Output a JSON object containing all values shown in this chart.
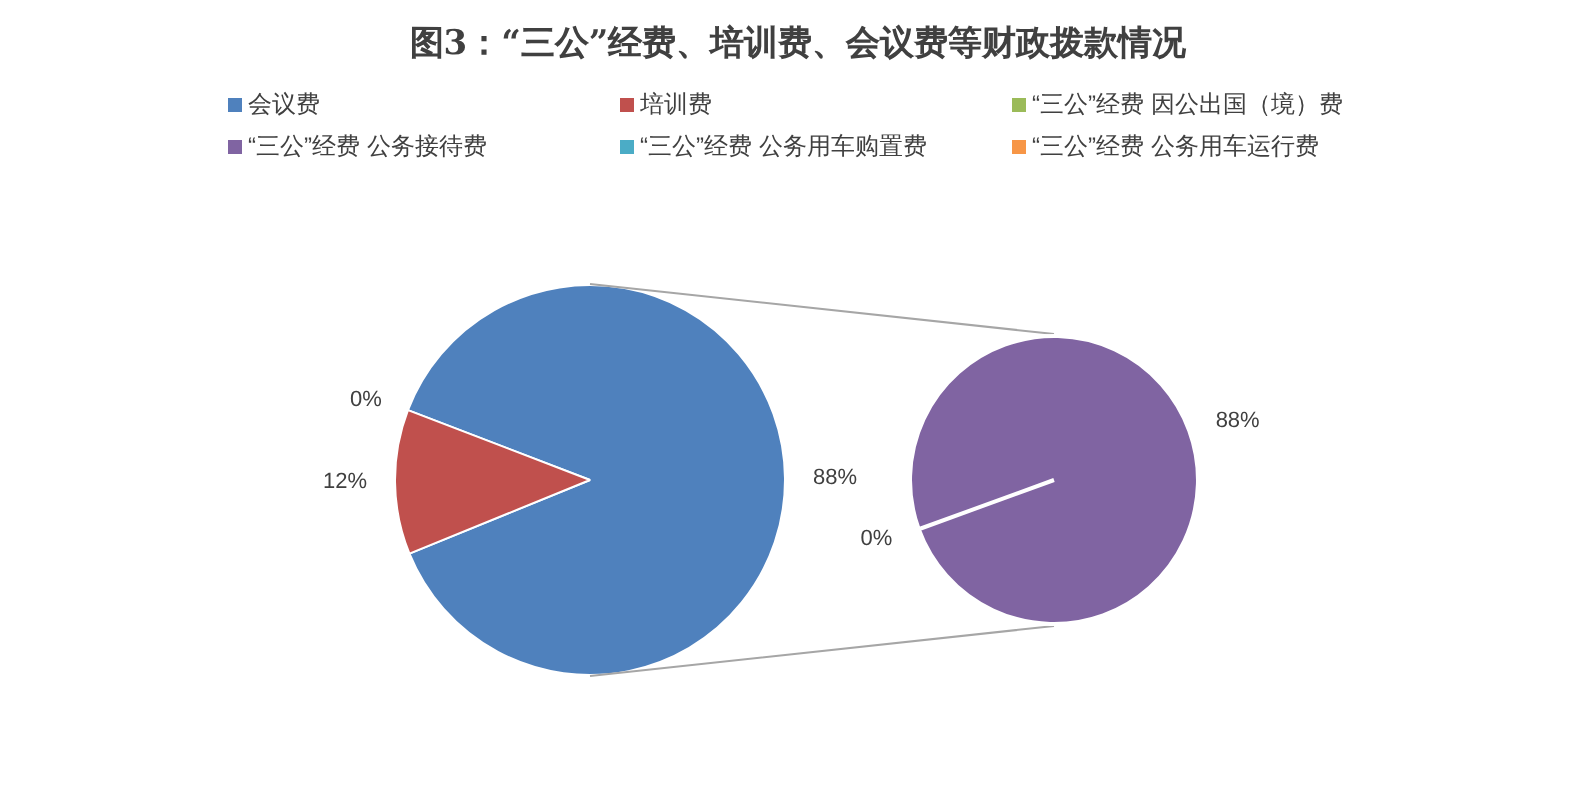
{
  "chart_data": [
    {
      "type": "pie",
      "title": "图3：“三公”经费、培训费、会议费等财政拨款情况",
      "categories": [
        "会议费",
        "培训费",
        "“三公”经费 因公出国（境）费",
        "“三公”经费 公务接待费",
        "“三公”经费 公务用车购置费",
        "“三公”经费 公务用车运行费"
      ],
      "values": [
        88,
        12,
        0,
        0,
        0,
        0
      ],
      "colors": [
        "#4f81bd",
        "#c0504d",
        "#9bbb59",
        "#8064a2",
        "#4bacc6",
        "#f79646"
      ],
      "value_labels": [
        "88%",
        "12%",
        "0%",
        null,
        null,
        null
      ],
      "legend": "top"
    },
    {
      "type": "pie",
      "categories": [
        null,
        null
      ],
      "values": [
        0,
        88
      ],
      "colors": [
        "#ffffff",
        "#8064a2"
      ],
      "value_labels": [
        "0%",
        "88%"
      ]
    }
  ]
}
